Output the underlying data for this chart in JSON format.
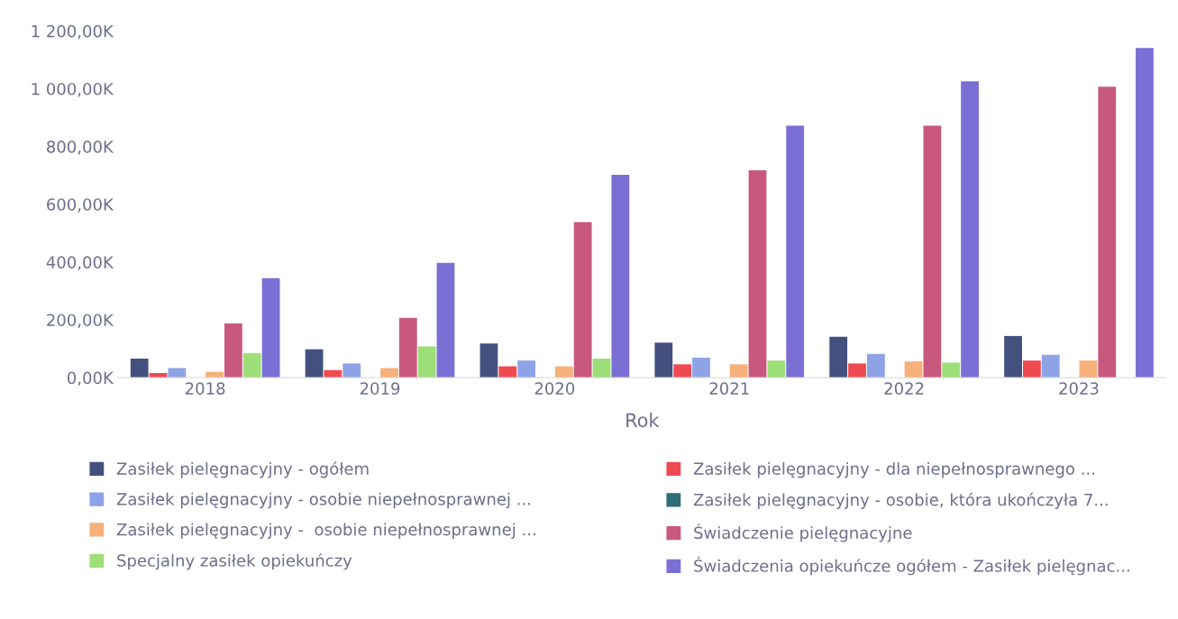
{
  "chart_data": {
    "type": "bar",
    "xlabel": "Rok",
    "categories": [
      "2018",
      "2019",
      "2020",
      "2021",
      "2022",
      "2023"
    ],
    "ylim": [
      0,
      1200
    ],
    "yticks": [
      {
        "value": 0,
        "label": "0,00K"
      },
      {
        "value": 200,
        "label": "200,00K"
      },
      {
        "value": 400,
        "label": "400,00K"
      },
      {
        "value": 600,
        "label": "600,00K"
      },
      {
        "value": 800,
        "label": "800,00K"
      },
      {
        "value": 1000,
        "label": "1 000,00K"
      },
      {
        "value": 1200,
        "label": "1 200,00K"
      }
    ],
    "grid": false,
    "legend": "bottom",
    "series": [
      {
        "name": "Zasiłek pielęgnacyjny - ogółem",
        "color": "#44517f",
        "values": [
          66,
          98,
          118,
          121,
          141,
          144
        ]
      },
      {
        "name": "Zasiłek pielęgnacyjny - dla niepełnosprawnego ...",
        "color": "#ef4a52",
        "values": [
          16,
          26,
          39,
          46,
          49,
          59
        ]
      },
      {
        "name": "Zasiłek pielęgnacyjny - osobie niepełnosprawnej ...",
        "color": "#8ea3e6",
        "values": [
          33,
          49,
          59,
          69,
          82,
          79
        ]
      },
      {
        "name": "Zasiłek pielęgnacyjny - osobie, która ukończyła 7...",
        "color": "#2f6d78",
        "values": [
          null,
          null,
          null,
          null,
          null,
          null
        ]
      },
      {
        "name": "Zasiłek pielęgnacyjny -  osobie niepełnosprawnej ...",
        "color": "#f7b07a",
        "values": [
          20,
          33,
          39,
          46,
          56,
          59
        ]
      },
      {
        "name": "Świadczenie pielęgnacyjne",
        "color": "#c9587f",
        "values": [
          187,
          207,
          538,
          718,
          872,
          1007
        ]
      },
      {
        "name": "Specjalny zasiłek opiekuńczy",
        "color": "#9ede78",
        "values": [
          85,
          108,
          66,
          59,
          52,
          null
        ]
      },
      {
        "name": "Świadczenia opiekuńcze ogółem - Zasiłek pielęgnac...",
        "color": "#7a6fd4",
        "values": [
          344,
          397,
          702,
          872,
          1026,
          1141
        ]
      }
    ]
  }
}
